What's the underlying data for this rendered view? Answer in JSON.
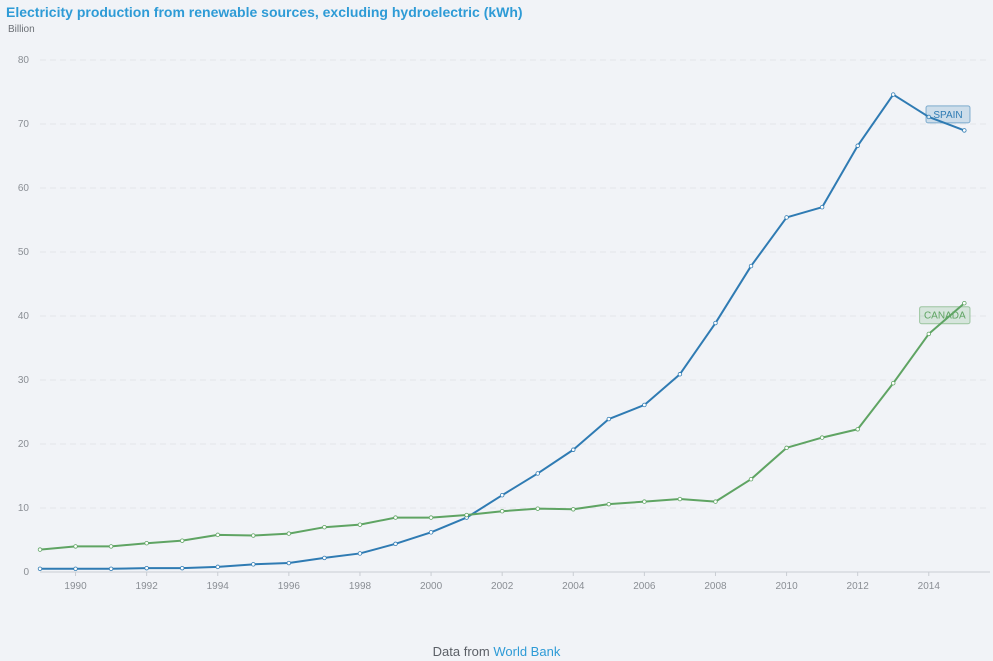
{
  "header": {
    "title": "Electricity production from renewable sources, excluding hydroelectric (kWh)",
    "unit": "Billion"
  },
  "footer": {
    "prefix": "Data from",
    "link": "World Bank"
  },
  "colors": {
    "background": "#f1f3f7",
    "title": "#2e9bd6",
    "spain": "#2f7bb3",
    "canada": "#5fa463",
    "grid": "#e2e5ea",
    "tick": "#8a8e94"
  },
  "chart_data": {
    "type": "line",
    "title": "Electricity production from renewable sources, excluding hydroelectric (kWh)",
    "ylabel": "Billion",
    "xlabel": "",
    "xlim": [
      1989,
      2015.3
    ],
    "ylim": [
      0,
      80
    ],
    "yticks": [
      0,
      10,
      20,
      30,
      40,
      50,
      60,
      70,
      80
    ],
    "xticks": [
      1990,
      1992,
      1994,
      1996,
      1998,
      2000,
      2002,
      2004,
      2006,
      2008,
      2010,
      2012,
      2014
    ],
    "grid": true,
    "legend": "inline labels at line ends",
    "x": [
      1989,
      1990,
      1991,
      1992,
      1993,
      1994,
      1995,
      1996,
      1997,
      1998,
      1999,
      2000,
      2001,
      2002,
      2003,
      2004,
      2005,
      2006,
      2007,
      2008,
      2009,
      2010,
      2011,
      2012,
      2013,
      2014,
      2015
    ],
    "series": [
      {
        "name": "SPAIN",
        "color": "#2f7bb3",
        "values": [
          0.5,
          0.5,
          0.5,
          0.6,
          0.6,
          0.8,
          1.2,
          1.4,
          2.2,
          2.9,
          4.4,
          6.2,
          8.5,
          12.0,
          15.4,
          19.1,
          23.9,
          26.1,
          30.9,
          38.9,
          47.8,
          55.4,
          57.0,
          66.6,
          74.6,
          71.1,
          69.0
        ]
      },
      {
        "name": "CANADA",
        "color": "#5fa463",
        "values": [
          3.5,
          4.0,
          4.0,
          4.5,
          4.9,
          5.8,
          5.7,
          6.0,
          7.0,
          7.4,
          8.5,
          8.5,
          8.9,
          9.5,
          9.9,
          9.8,
          10.6,
          11.0,
          11.4,
          11.0,
          14.5,
          19.4,
          21.0,
          22.3,
          29.5,
          37.2,
          42.0
        ]
      }
    ]
  }
}
